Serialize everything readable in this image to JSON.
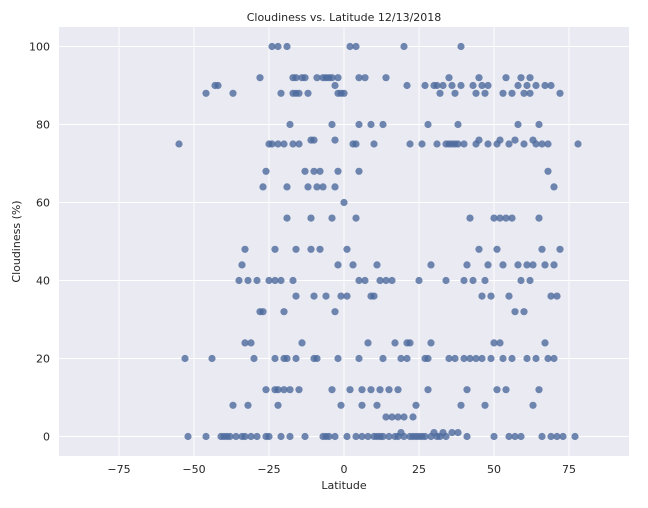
{
  "chart_data": {
    "type": "scatter",
    "title": "Cloudiness  vs. Latitude 12/13/2018",
    "xlabel": "Latitude",
    "ylabel": "Cloudiness (%)",
    "xlim": [
      -95,
      95
    ],
    "ylim": [
      -5,
      105
    ],
    "xticks": [
      -75,
      -50,
      -25,
      0,
      25,
      50,
      75
    ],
    "yticks": [
      0,
      20,
      40,
      60,
      80,
      100
    ],
    "grid": true,
    "legend": "none",
    "colors": {
      "marker": "#4c6a9c",
      "plot_bg": "#eaeaf2",
      "grid": "#ffffff"
    },
    "series": [
      {
        "points": [
          [
            -55,
            75
          ],
          [
            -53,
            20
          ],
          [
            -52,
            0
          ],
          [
            -46,
            88
          ],
          [
            -46,
            0
          ],
          [
            -44,
            20
          ],
          [
            -43,
            90
          ],
          [
            -42,
            90
          ],
          [
            -41,
            0
          ],
          [
            -40,
            0
          ],
          [
            -39,
            0
          ],
          [
            -38,
            0
          ],
          [
            -37,
            88
          ],
          [
            -37,
            8
          ],
          [
            -36,
            0
          ],
          [
            -35,
            40
          ],
          [
            -34,
            44
          ],
          [
            -34,
            0
          ],
          [
            -33,
            48
          ],
          [
            -33,
            24
          ],
          [
            -33,
            0
          ],
          [
            -32,
            40
          ],
          [
            -32,
            8
          ],
          [
            -31,
            24
          ],
          [
            -31,
            0
          ],
          [
            -30,
            20
          ],
          [
            -29,
            40
          ],
          [
            -29,
            0
          ],
          [
            -28,
            92
          ],
          [
            -28,
            32
          ],
          [
            -27,
            64
          ],
          [
            -27,
            32
          ],
          [
            -26,
            68
          ],
          [
            -26,
            12
          ],
          [
            -26,
            0
          ],
          [
            -25,
            75
          ],
          [
            -25,
            40
          ],
          [
            -25,
            0
          ],
          [
            -24,
            100
          ],
          [
            -24,
            75
          ],
          [
            -23,
            48
          ],
          [
            -23,
            40
          ],
          [
            -23,
            20
          ],
          [
            -23,
            12
          ],
          [
            -22,
            100
          ],
          [
            -22,
            75
          ],
          [
            -22,
            12
          ],
          [
            -22,
            8
          ],
          [
            -21,
            88
          ],
          [
            -21,
            40
          ],
          [
            -21,
            0
          ],
          [
            -20,
            75
          ],
          [
            -20,
            32
          ],
          [
            -20,
            20
          ],
          [
            -20,
            12
          ],
          [
            -19,
            100
          ],
          [
            -19,
            64
          ],
          [
            -19,
            56
          ],
          [
            -19,
            20
          ],
          [
            -18,
            80
          ],
          [
            -18,
            12
          ],
          [
            -18,
            0
          ],
          [
            -17,
            92
          ],
          [
            -17,
            88
          ],
          [
            -17,
            75
          ],
          [
            -17,
            40
          ],
          [
            -16,
            92
          ],
          [
            -16,
            88
          ],
          [
            -16,
            48
          ],
          [
            -16,
            36
          ],
          [
            -16,
            20
          ],
          [
            -15,
            88
          ],
          [
            -15,
            75
          ],
          [
            -15,
            12
          ],
          [
            -14,
            92
          ],
          [
            -14,
            24
          ],
          [
            -13,
            92
          ],
          [
            -13,
            68
          ],
          [
            -13,
            0
          ],
          [
            -12,
            64
          ],
          [
            -12,
            88
          ],
          [
            -11,
            76
          ],
          [
            -11,
            56
          ],
          [
            -11,
            48
          ],
          [
            -10,
            76
          ],
          [
            -10,
            68
          ],
          [
            -10,
            36
          ],
          [
            -10,
            20
          ],
          [
            -9,
            92
          ],
          [
            -9,
            64
          ],
          [
            -9,
            20
          ],
          [
            -8,
            68
          ],
          [
            -8,
            48
          ],
          [
            -7,
            92
          ],
          [
            -7,
            64
          ],
          [
            -7,
            0
          ],
          [
            -6,
            92
          ],
          [
            -6,
            36
          ],
          [
            -6,
            0
          ],
          [
            -5,
            92
          ],
          [
            -5,
            0
          ],
          [
            -4,
            92
          ],
          [
            -4,
            80
          ],
          [
            -4,
            56
          ],
          [
            -4,
            12
          ],
          [
            -3,
            90
          ],
          [
            -3,
            76
          ],
          [
            -3,
            64
          ],
          [
            -3,
            32
          ],
          [
            -3,
            0
          ],
          [
            -2,
            92
          ],
          [
            -2,
            88
          ],
          [
            -2,
            68
          ],
          [
            -2,
            44
          ],
          [
            -2,
            20
          ],
          [
            -1,
            88
          ],
          [
            -1,
            36
          ],
          [
            -1,
            8
          ],
          [
            0,
            88
          ],
          [
            0,
            60
          ],
          [
            1,
            48
          ],
          [
            1,
            36
          ],
          [
            1,
            0
          ],
          [
            2,
            100
          ],
          [
            2,
            12
          ],
          [
            3,
            75
          ],
          [
            3,
            44
          ],
          [
            4,
            100
          ],
          [
            4,
            75
          ],
          [
            4,
            56
          ],
          [
            4,
            0
          ],
          [
            5,
            92
          ],
          [
            5,
            80
          ],
          [
            5,
            68
          ],
          [
            5,
            40
          ],
          [
            5,
            20
          ],
          [
            6,
            12
          ],
          [
            6,
            8
          ],
          [
            6,
            0
          ],
          [
            7,
            92
          ],
          [
            7,
            40
          ],
          [
            8,
            24
          ],
          [
            8,
            0
          ],
          [
            9,
            80
          ],
          [
            9,
            36
          ],
          [
            9,
            12
          ],
          [
            10,
            75
          ],
          [
            10,
            36
          ],
          [
            10,
            0
          ],
          [
            11,
            44
          ],
          [
            11,
            8
          ],
          [
            11,
            0
          ],
          [
            12,
            40
          ],
          [
            12,
            12
          ],
          [
            12,
            0
          ],
          [
            13,
            80
          ],
          [
            13,
            20
          ],
          [
            13,
            0
          ],
          [
            14,
            92
          ],
          [
            14,
            40
          ],
          [
            14,
            5
          ],
          [
            15,
            12
          ],
          [
            15,
            0
          ],
          [
            16,
            40
          ],
          [
            16,
            5
          ],
          [
            17,
            24
          ],
          [
            17,
            0
          ],
          [
            18,
            12
          ],
          [
            18,
            5
          ],
          [
            18,
            0
          ],
          [
            19,
            20
          ],
          [
            19,
            1
          ],
          [
            20,
            100
          ],
          [
            20,
            5
          ],
          [
            20,
            0
          ],
          [
            21,
            90
          ],
          [
            21,
            24
          ],
          [
            21,
            20
          ],
          [
            22,
            75
          ],
          [
            22,
            24
          ],
          [
            22,
            0
          ],
          [
            23,
            5
          ],
          [
            23,
            0
          ],
          [
            24,
            8
          ],
          [
            24,
            0
          ],
          [
            25,
            40
          ],
          [
            25,
            0
          ],
          [
            26,
            75
          ],
          [
            26,
            0
          ],
          [
            27,
            90
          ],
          [
            27,
            20
          ],
          [
            27,
            0
          ],
          [
            28,
            80
          ],
          [
            28,
            20
          ],
          [
            28,
            12
          ],
          [
            29,
            44
          ],
          [
            29,
            24
          ],
          [
            29,
            0
          ],
          [
            30,
            90
          ],
          [
            30,
            1
          ],
          [
            31,
            90
          ],
          [
            31,
            75
          ],
          [
            31,
            0
          ],
          [
            32,
            88
          ],
          [
            32,
            0
          ],
          [
            33,
            90
          ],
          [
            33,
            1
          ],
          [
            34,
            75
          ],
          [
            34,
            40
          ],
          [
            34,
            0
          ],
          [
            35,
            92
          ],
          [
            35,
            75
          ],
          [
            35,
            20
          ],
          [
            36,
            90
          ],
          [
            36,
            75
          ],
          [
            36,
            1
          ],
          [
            37,
            88
          ],
          [
            37,
            75
          ],
          [
            37,
            20
          ],
          [
            38,
            80
          ],
          [
            38,
            75
          ],
          [
            38,
            1
          ],
          [
            39,
            100
          ],
          [
            39,
            90
          ],
          [
            39,
            8
          ],
          [
            40,
            75
          ],
          [
            40,
            40
          ],
          [
            40,
            20
          ],
          [
            41,
            44
          ],
          [
            41,
            12
          ],
          [
            41,
            0
          ],
          [
            42,
            56
          ],
          [
            42,
            20
          ],
          [
            43,
            90
          ],
          [
            43,
            40
          ],
          [
            44,
            88
          ],
          [
            44,
            75
          ],
          [
            44,
            20
          ],
          [
            45,
            92
          ],
          [
            45,
            76
          ],
          [
            45,
            48
          ],
          [
            46,
            90
          ],
          [
            46,
            36
          ],
          [
            46,
            20
          ],
          [
            47,
            88
          ],
          [
            47,
            40
          ],
          [
            47,
            8
          ],
          [
            48,
            90
          ],
          [
            48,
            75
          ],
          [
            48,
            44
          ],
          [
            49,
            36
          ],
          [
            49,
            20
          ],
          [
            50,
            56
          ],
          [
            50,
            24
          ],
          [
            50,
            0
          ],
          [
            51,
            75
          ],
          [
            51,
            48
          ],
          [
            51,
            12
          ],
          [
            52,
            76
          ],
          [
            52,
            56
          ],
          [
            52,
            24
          ],
          [
            53,
            88
          ],
          [
            53,
            44
          ],
          [
            53,
            20
          ],
          [
            54,
            92
          ],
          [
            54,
            56
          ],
          [
            54,
            12
          ],
          [
            55,
            75
          ],
          [
            55,
            36
          ],
          [
            55,
            0
          ],
          [
            56,
            88
          ],
          [
            56,
            56
          ],
          [
            56,
            20
          ],
          [
            57,
            76
          ],
          [
            57,
            32
          ],
          [
            57,
            0
          ],
          [
            58,
            90
          ],
          [
            58,
            80
          ],
          [
            58,
            44
          ],
          [
            59,
            92
          ],
          [
            59,
            40
          ],
          [
            59,
            0
          ],
          [
            60,
            88
          ],
          [
            60,
            75
          ],
          [
            60,
            32
          ],
          [
            61,
            90
          ],
          [
            61,
            44
          ],
          [
            61,
            20
          ],
          [
            62,
            92
          ],
          [
            62,
            88
          ],
          [
            62,
            40
          ],
          [
            63,
            76
          ],
          [
            63,
            44
          ],
          [
            63,
            8
          ],
          [
            64,
            90
          ],
          [
            64,
            75
          ],
          [
            64,
            20
          ],
          [
            65,
            80
          ],
          [
            65,
            56
          ],
          [
            65,
            12
          ],
          [
            66,
            75
          ],
          [
            66,
            48
          ],
          [
            66,
            0
          ],
          [
            67,
            90
          ],
          [
            67,
            44
          ],
          [
            67,
            24
          ],
          [
            68,
            75
          ],
          [
            68,
            68
          ],
          [
            68,
            20
          ],
          [
            69,
            90
          ],
          [
            69,
            36
          ],
          [
            69,
            0
          ],
          [
            70,
            64
          ],
          [
            70,
            44
          ],
          [
            70,
            20
          ],
          [
            71,
            36
          ],
          [
            71,
            0
          ],
          [
            72,
            88
          ],
          [
            72,
            48
          ],
          [
            73,
            0
          ],
          [
            77,
            0
          ],
          [
            78,
            75
          ]
        ]
      }
    ]
  }
}
